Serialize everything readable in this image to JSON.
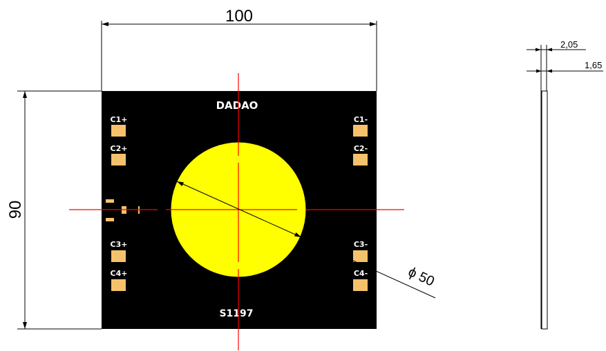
{
  "dimensions": {
    "width": "100",
    "height": "90",
    "diameter": "ϕ 50",
    "thickness_total": "2,05",
    "thickness_board": "1,65"
  },
  "board": {
    "brand": "DADAO",
    "part_number": "S1197",
    "pads_left": [
      "C1+",
      "C2+",
      "C3+",
      "C4+"
    ],
    "pads_right": [
      "C1-",
      "C2-",
      "C3-",
      "C4-"
    ]
  },
  "colors": {
    "board": "#000000",
    "emitter": "#ffff00",
    "pad": "#f5c26b",
    "centerline": "#ff0000"
  }
}
